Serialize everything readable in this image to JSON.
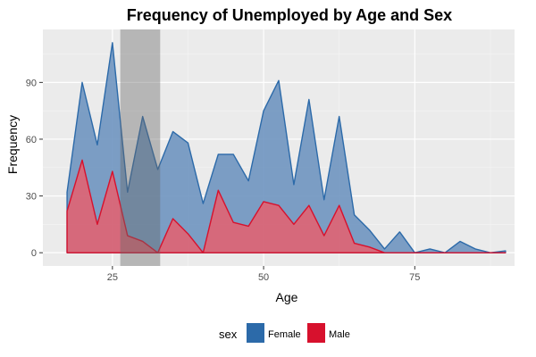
{
  "chart_data": {
    "type": "area",
    "title": "Frequency of Unemployed by Age and Sex",
    "xlabel": "Age",
    "ylabel": "Frequency",
    "xlim": [
      13.5,
      91.5
    ],
    "ylim": [
      -7,
      118
    ],
    "x_ticks": [
      25,
      50,
      75
    ],
    "y_ticks": [
      0,
      30,
      60,
      90
    ],
    "x_ticks_minor": [
      37.5,
      62.5,
      87.5
    ],
    "y_ticks_minor": [
      15,
      45,
      75,
      105
    ],
    "grid": true,
    "highlight_band": {
      "x_start": 26.3,
      "x_end": 32.9
    },
    "legend": {
      "title": "sex",
      "position": "bottom"
    },
    "series": [
      {
        "name": "Female",
        "color": "#2c6aa9",
        "fill": "#6f95c0",
        "x": [
          17.5,
          20,
          22.5,
          25,
          27.5,
          30,
          32.5,
          35,
          37.5,
          40,
          42.5,
          45,
          47.5,
          50,
          52.5,
          55,
          57.5,
          60,
          62.5,
          65,
          67.5,
          70,
          72.5,
          75,
          77.5,
          80,
          82.5,
          85,
          87.5,
          90
        ],
        "values": [
          32,
          90,
          57,
          111,
          32,
          72,
          44,
          64,
          58,
          26,
          52,
          52,
          38,
          75,
          91,
          36,
          81,
          28,
          72,
          20,
          12,
          2,
          11,
          0,
          2,
          0,
          6,
          2,
          0,
          1
        ]
      },
      {
        "name": "Male",
        "color": "#d7112d",
        "fill": "#e06473",
        "x": [
          17.5,
          20,
          22.5,
          25,
          27.5,
          30,
          32.5,
          35,
          37.5,
          40,
          42.5,
          45,
          47.5,
          50,
          52.5,
          55,
          57.5,
          60,
          62.5,
          65,
          67.5,
          70,
          72.5,
          75,
          77.5,
          80,
          82.5,
          85,
          87.5,
          90
        ],
        "values": [
          22,
          49,
          15,
          43,
          9,
          6,
          0,
          18,
          10,
          0,
          33,
          16,
          14,
          27,
          25,
          15,
          25,
          9,
          25,
          5,
          3,
          0,
          0,
          0,
          0,
          0,
          0,
          0,
          0,
          0
        ]
      }
    ]
  }
}
